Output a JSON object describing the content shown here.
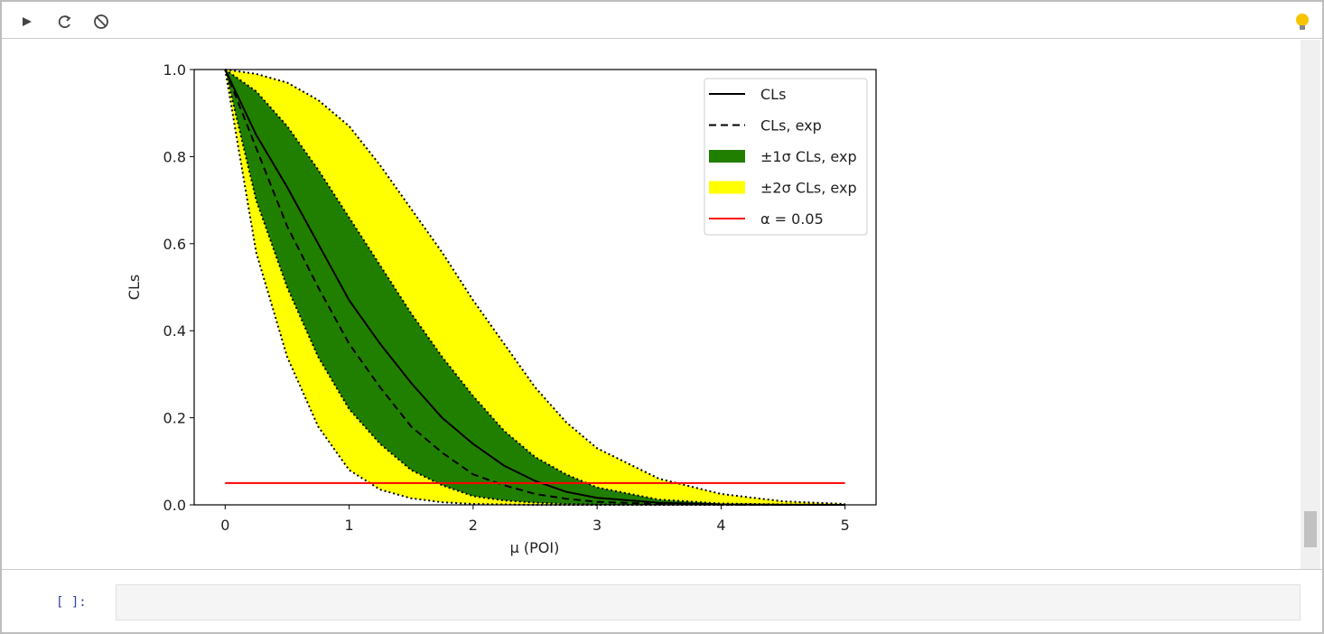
{
  "cell": {
    "prompt": "[ ]:"
  },
  "chart_data": {
    "type": "line",
    "xlabel": "μ (POI)",
    "ylabel": "CLs",
    "x": [
      0,
      0.25,
      0.5,
      0.75,
      1,
      1.25,
      1.5,
      1.75,
      2,
      2.25,
      2.5,
      2.75,
      3,
      3.5,
      4,
      4.5,
      5
    ],
    "xlim": [
      -0.25,
      5.25
    ],
    "xticks": [
      0,
      1,
      2,
      3,
      4,
      5
    ],
    "ylim": [
      0,
      1
    ],
    "yticks": [
      {
        "value": 0,
        "label": "0.0"
      },
      0.2,
      0.4,
      0.6,
      0.8,
      {
        "value": 1,
        "label": "1.0"
      }
    ],
    "legend": "upper right",
    "series": [
      {
        "name": "CLs",
        "color": "#000000",
        "style": "solid",
        "values": [
          1,
          0.85,
          0.73,
          0.6,
          0.47,
          0.37,
          0.28,
          0.2,
          0.14,
          0.09,
          0.055,
          0.03,
          0.016,
          0.005,
          0.001,
          0.0003,
          0.0001
        ]
      },
      {
        "name": "CLs, exp",
        "color": "#000000",
        "style": "dashed",
        "values": [
          1,
          0.82,
          0.64,
          0.5,
          0.37,
          0.27,
          0.18,
          0.12,
          0.07,
          0.045,
          0.025,
          0.014,
          0.007,
          0.002,
          0.0005,
          0.0001,
          0
        ]
      }
    ],
    "bands": [
      {
        "name": "±1σ CLs, exp",
        "color": "#217f00",
        "upper": [
          1,
          0.95,
          0.87,
          0.77,
          0.66,
          0.55,
          0.44,
          0.34,
          0.25,
          0.17,
          0.11,
          0.07,
          0.04,
          0.012,
          0.003,
          0.001,
          0.0002
        ],
        "lower": [
          1,
          0.7,
          0.5,
          0.34,
          0.22,
          0.14,
          0.08,
          0.045,
          0.02,
          0.01,
          0.005,
          0.002,
          0.001,
          0.0002,
          0,
          0,
          0
        ]
      },
      {
        "name": "±2σ CLs, exp",
        "color": "#ffff00",
        "upper": [
          1,
          0.99,
          0.97,
          0.93,
          0.87,
          0.78,
          0.68,
          0.58,
          0.47,
          0.37,
          0.27,
          0.19,
          0.13,
          0.06,
          0.025,
          0.008,
          0.002
        ],
        "lower": [
          1,
          0.58,
          0.34,
          0.18,
          0.08,
          0.035,
          0.015,
          0.006,
          0.002,
          0.001,
          0,
          0,
          0,
          0,
          0,
          0,
          0
        ]
      }
    ],
    "threshold": {
      "name": "α = 0.05",
      "value": 0.05,
      "color": "#ff0000",
      "x": [
        0,
        5
      ]
    }
  }
}
